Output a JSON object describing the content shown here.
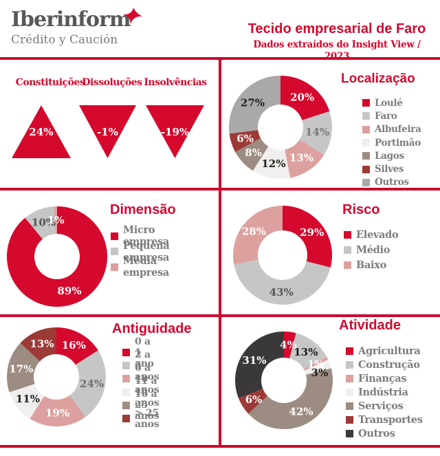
{
  "brand": {
    "name": "Iberinform",
    "tagline": "Crédito y Caución",
    "logo_icon": "bird-icon"
  },
  "header": {
    "title": "Tecido empresarial de Faro",
    "subtitle": "Dados extraídos do Insight View / 2023"
  },
  "palette": {
    "red": "#d5082d",
    "light_gray": "#c7c6c6",
    "pink": "#dca19e",
    "off_white": "#f0efed",
    "taupe": "#9d8c82",
    "brick": "#9c3a36",
    "mid_gray": "#aaa8a9",
    "charcoal": "#3b3839",
    "line_red": "#cc092e",
    "legend_text": "#7d7c7c"
  },
  "kpis": {
    "items": [
      {
        "label": "Constituições",
        "value": "24%",
        "direction": "up"
      },
      {
        "label": "Dissoluções",
        "value": "-1%",
        "direction": "down"
      },
      {
        "label": "Insolvências",
        "value": "-19%",
        "direction": "down"
      }
    ]
  },
  "chart_data": [
    {
      "id": "localizacao",
      "type": "donut",
      "title": "Localização",
      "legend_position": "right",
      "slices": [
        {
          "label": "Loulé",
          "value": 20,
          "display": "20%",
          "color": "#d5082d",
          "label_color": "#ffffff"
        },
        {
          "label": "Faro",
          "value": 14,
          "display": "14%",
          "color": "#c7c6c6",
          "label_color": "#787777"
        },
        {
          "label": "Albufeira",
          "value": 13,
          "display": "13%",
          "color": "#dca19e",
          "label_color": "#ffffff"
        },
        {
          "label": "Portimão",
          "value": 12,
          "display": "12%",
          "color": "#f0efed",
          "label_color": "#1d1d1b"
        },
        {
          "label": "Lagos",
          "value": 8,
          "display": "8%",
          "color": "#9d8c82",
          "label_color": "#ffffff"
        },
        {
          "label": "Silves",
          "value": 6,
          "display": "6%",
          "color": "#9c3a36",
          "label_color": "#ffffff"
        },
        {
          "label": "Outros",
          "value": 27,
          "display": "27%",
          "color": "#aaa8a9",
          "label_color": "#1d1d1b"
        }
      ]
    },
    {
      "id": "dimensao",
      "type": "donut",
      "title": "Dimensão",
      "legend_position": "right",
      "slices": [
        {
          "label": "Micro empresa",
          "value": 89,
          "display": "89%",
          "color": "#d5082d",
          "label_color": "#ffffff"
        },
        {
          "label": "Pequena empresa",
          "value": 10,
          "display": "10%",
          "color": "#c7c6c6",
          "label_color": "#565655"
        },
        {
          "label": "Média empresa",
          "value": 1,
          "display": "1%",
          "color": "#dca19e",
          "label_color": "#ffffff"
        }
      ]
    },
    {
      "id": "risco",
      "type": "donut",
      "title": "Risco",
      "legend_position": "right",
      "slices": [
        {
          "label": "Elevado",
          "value": 29,
          "display": "29%",
          "color": "#d5082d",
          "label_color": "#ffffff"
        },
        {
          "label": "Médio",
          "value": 43,
          "display": "43%",
          "color": "#c7c6c6",
          "label_color": "#565655"
        },
        {
          "label": "Baixo",
          "value": 28,
          "display": "28%",
          "color": "#dca19e",
          "label_color": "#ffffff"
        }
      ]
    },
    {
      "id": "antiguidade",
      "type": "donut",
      "title": "Antiguidade",
      "legend_position": "right",
      "slices": [
        {
          "label": "0 a 1 ano",
          "value": 16,
          "display": "16%",
          "color": "#d5082d",
          "label_color": "#ffffff"
        },
        {
          "label": "2 a 5 anos",
          "value": 24,
          "display": "24%",
          "color": "#c7c6c6",
          "label_color": "#6f6e6e"
        },
        {
          "label": "6 a 10 anos",
          "value": 19,
          "display": "19%",
          "color": "#dca19e",
          "label_color": "#ffffff"
        },
        {
          "label": "11 a 15 anos",
          "value": 11,
          "display": "11%",
          "color": "#f0efed",
          "label_color": "#1d1d1b"
        },
        {
          "label": "16 a 25 anos",
          "value": 17,
          "display": "17%",
          "color": "#9d8c82",
          "label_color": "#ffffff"
        },
        {
          "label": "> 25 anos",
          "value": 13,
          "display": "13%",
          "color": "#9c3a36",
          "label_color": "#ffffff"
        }
      ]
    },
    {
      "id": "atividade",
      "type": "donut",
      "title": "Atividade",
      "legend_position": "right",
      "slices": [
        {
          "label": "Agricultura",
          "value": 4,
          "display": "4%",
          "color": "#d5082d",
          "label_color": "#ffffff"
        },
        {
          "label": "Construção",
          "value": 13,
          "display": "13%",
          "color": "#c7c6c6",
          "label_color": "#1d1d1b"
        },
        {
          "label": "Finanças",
          "value": 1,
          "display": "1%",
          "color": "#dca19e",
          "label_color": "#ffffff"
        },
        {
          "label": "Indústria",
          "value": 3,
          "display": "3%",
          "color": "#f0efed",
          "label_color": "#1d1d1b",
          "label_da": 8,
          "label_dr": 1
        },
        {
          "label": "Serviços",
          "value": 42,
          "display": "42%",
          "color": "#9d8c82",
          "label_color": "#ffffff"
        },
        {
          "label": "Transportes",
          "value": 6,
          "display": "6%",
          "color": "#9c3a36",
          "label_color": "#ffffff"
        },
        {
          "label": "Outros",
          "value": 31,
          "display": "31%",
          "color": "#3b3839",
          "label_color": "#ffffff"
        }
      ]
    }
  ]
}
